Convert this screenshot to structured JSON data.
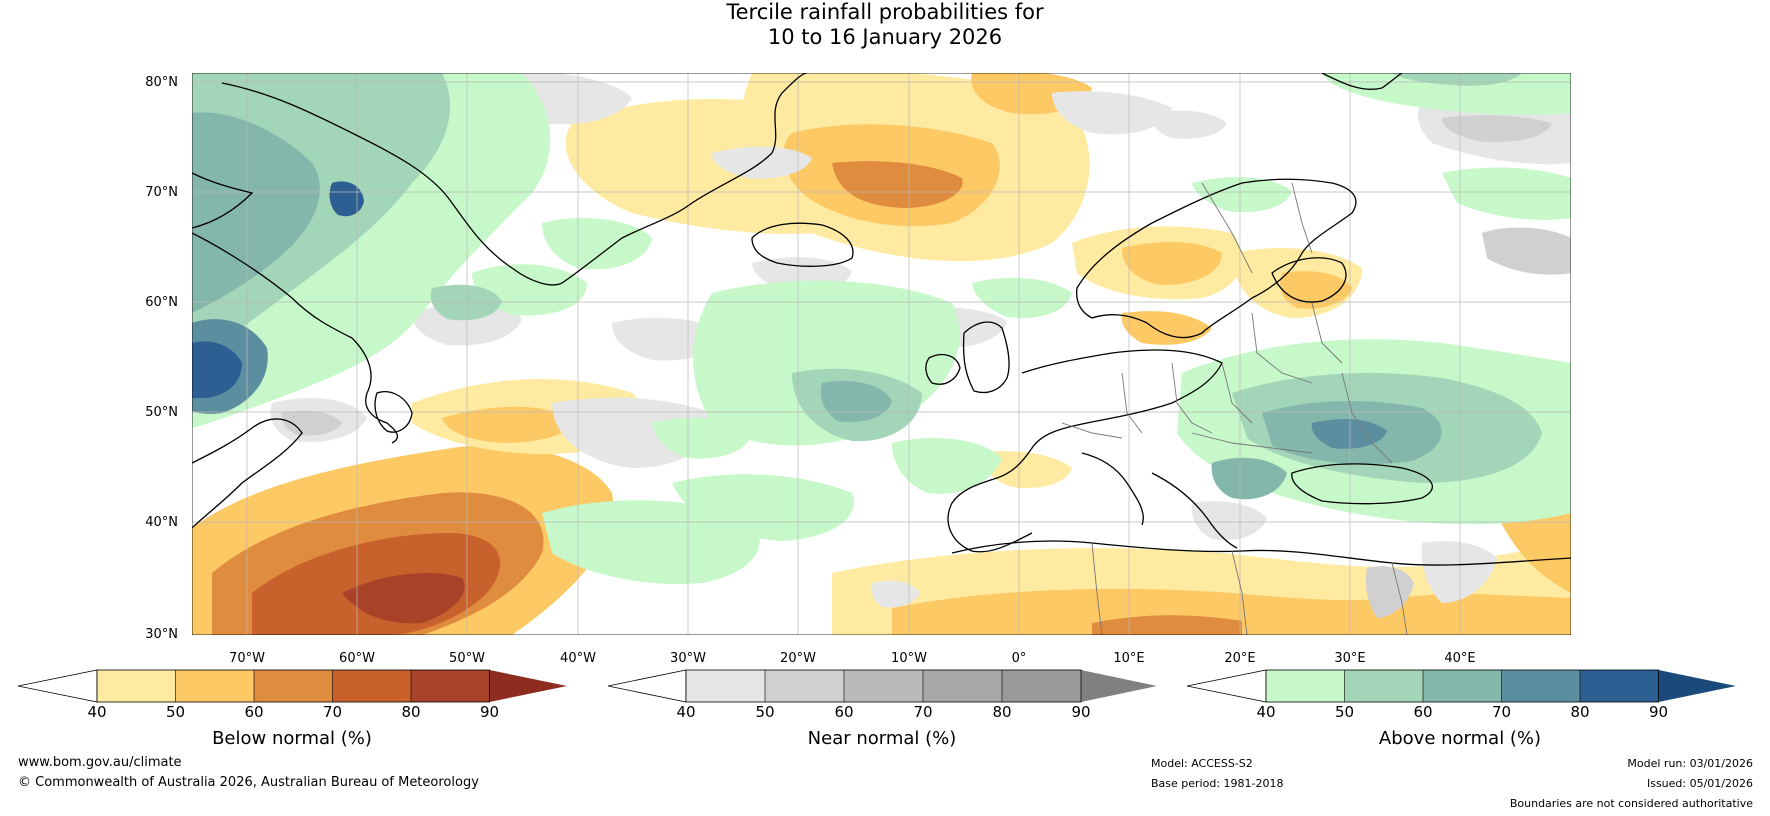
{
  "title": {
    "line1": "Tercile rainfall probabilities for",
    "line2": "10 to 16 January 2026"
  },
  "map": {
    "region": "North Atlantic and Europe",
    "projection": "equirectangular",
    "lon_range": [
      -80,
      45
    ],
    "lat_range": [
      30,
      81
    ],
    "gridlines": true,
    "lat_labels": [
      "80°N",
      "70°N",
      "60°N",
      "50°N",
      "40°N",
      "30°N"
    ],
    "lon_labels": [
      "70°W",
      "60°W",
      "50°W",
      "40°W",
      "30°W",
      "20°W",
      "10°W",
      "0°",
      "10°E",
      "20°E",
      "30°E",
      "40°E"
    ]
  },
  "colorbars": [
    {
      "title": "Below normal (%)",
      "ticks": [
        "40",
        "50",
        "60",
        "70",
        "80",
        "90"
      ],
      "colors": [
        "#ffffff",
        "#feeaa0",
        "#fdc965",
        "#e08c3f",
        "#c8612c",
        "#a8432a",
        "#8e2c1f"
      ]
    },
    {
      "title": "Near normal (%)",
      "ticks": [
        "40",
        "50",
        "60",
        "70",
        "80",
        "90"
      ],
      "colors": [
        "#ffffff",
        "#e6e6e6",
        "#d0d0d0",
        "#bababa",
        "#a8a8a8",
        "#9a9a9a",
        "#808080"
      ]
    },
    {
      "title": "Above normal (%)",
      "ticks": [
        "40",
        "50",
        "60",
        "70",
        "80",
        "90"
      ],
      "colors": [
        "#ffffff",
        "#c6f8c9",
        "#a3d5b8",
        "#83b7ab",
        "#5b8fa0",
        "#2e5f93",
        "#1a4a7a"
      ]
    }
  ],
  "footer": {
    "website": "www.bom.gov.au/climate",
    "copyright": "© Commonwealth of Australia 2026, Australian Bureau of Meteorology",
    "model": "Model: ACCESS-S2",
    "base_period": "Base period: 1981-2018",
    "model_run": "Model run: 03/01/2026",
    "issued": "Issued: 05/01/2026",
    "disclaimer": "Boundaries are not considered authoritative"
  }
}
